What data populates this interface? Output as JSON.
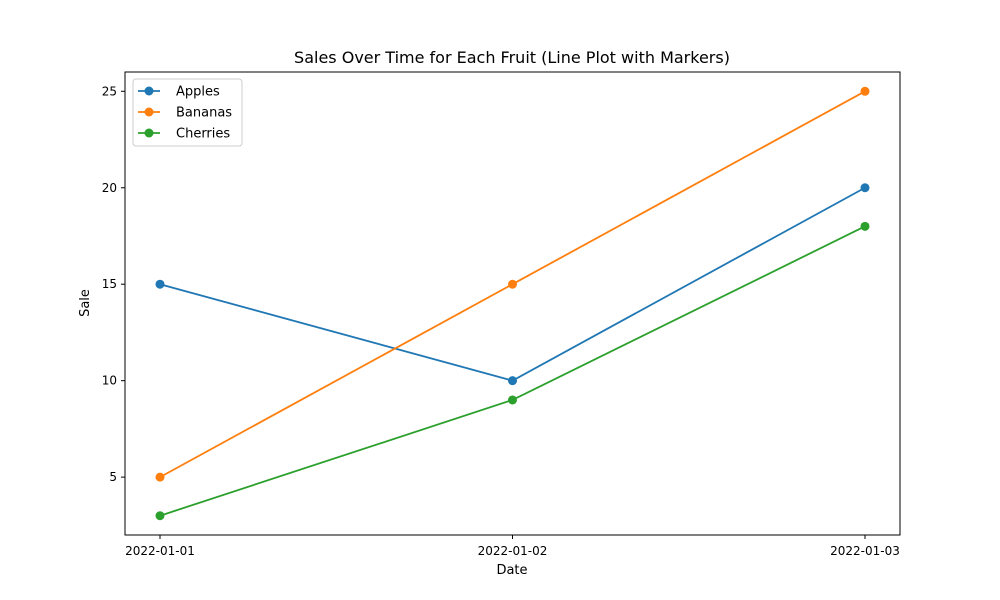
{
  "chart_data": {
    "type": "line",
    "title": "Sales Over Time for Each Fruit (Line Plot with Markers)",
    "xlabel": "Date",
    "ylabel": "Sale",
    "categories": [
      "2022-01-01",
      "2022-01-02",
      "2022-01-03"
    ],
    "yticks": [
      5,
      10,
      15,
      20,
      25
    ],
    "ylim": [
      2,
      26
    ],
    "grid": false,
    "legend_position": "top-left",
    "markers": true,
    "series": [
      {
        "name": "Apples",
        "color": "#1f77b4",
        "values": [
          15,
          10,
          20
        ]
      },
      {
        "name": "Bananas",
        "color": "#ff7f0e",
        "values": [
          5,
          15,
          25
        ]
      },
      {
        "name": "Cherries",
        "color": "#2ca02c",
        "values": [
          3,
          9,
          18
        ]
      }
    ]
  }
}
